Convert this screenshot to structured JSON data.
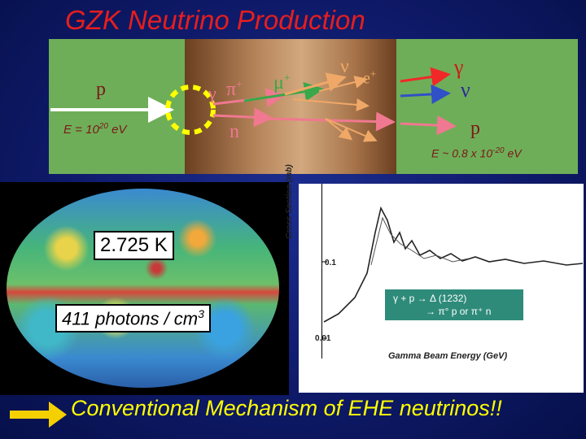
{
  "title": "GZK Neutrino Production",
  "diagram": {
    "p_in": "p",
    "energy_in": "E = 10",
    "energy_in_exp": "20",
    "energy_in_unit": " eV",
    "gamma": "γ",
    "pi_plus": "π",
    "pi_plus_sup": "+",
    "mu_plus": "μ",
    "mu_plus_sup": "+",
    "nu_mid": "ν",
    "e_plus": "e",
    "e_plus_sup": "+",
    "n": "n",
    "gamma_out": "γ",
    "nu_out": "ν",
    "p_out": "p",
    "energy_out": "E ~ 0.8 x 10",
    "energy_out_exp": "-20",
    "energy_out_unit": " eV"
  },
  "cmb": {
    "temp": "2.725 K",
    "density": "411 photons / cm",
    "density_exp": "3"
  },
  "plot": {
    "ylabel": "Cross Section (mb)",
    "ytick_high": "0.1",
    "ytick_low": "0.01",
    "xlabel": "Gamma Beam Energy (GeV)",
    "reaction_line1": "γ + p → Δ (1232)",
    "reaction_line2": "→ π° p or π⁺ n"
  },
  "footer": "Conventional Mechanism of EHE neutrinos!!",
  "colors": {
    "title": "#e61e1e",
    "diagram_bg": "#6fae58",
    "footer": "#ffff00",
    "arrow_in": "#ffffff",
    "ring": "#ffff00",
    "pink_arrow": "#f07890",
    "orange_arrow": "#f0a868",
    "blue_arrow": "#3050c8",
    "red_arrow": "#f02828",
    "big_arrow": "#f4d000"
  }
}
